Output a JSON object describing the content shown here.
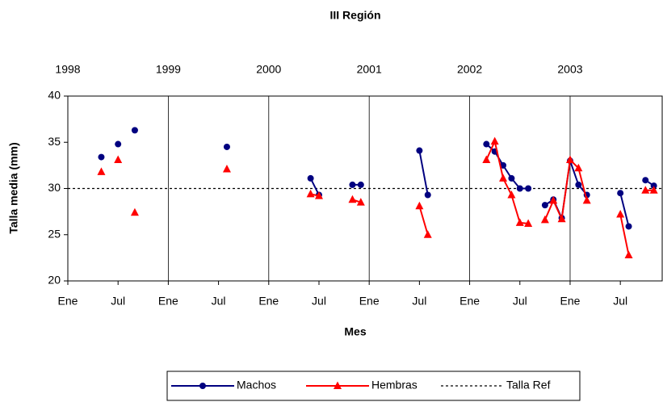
{
  "chart_data": {
    "type": "line",
    "title": "III Región",
    "x_label": "Mes",
    "y_label": "Talla media (mm)",
    "x": [
      "1998-05",
      "1998-06",
      "1998-07",
      "1998-08",
      "1998-09",
      "1998-10",
      "1999-08",
      "1999-09",
      "2000-06",
      "2000-07",
      "2000-08",
      "2000-11",
      "2000-12",
      "2001-01",
      "2001-07",
      "2001-08",
      "2001-09",
      "2002-03",
      "2002-04",
      "2002-05",
      "2002-06",
      "2002-07",
      "2002-08",
      "2002-09",
      "2002-10",
      "2002-11",
      "2002-12",
      "2003-01",
      "2003-02",
      "2003-03",
      "2003-04",
      "2003-07",
      "2003-08",
      "2003-09",
      "2003-10",
      "2003-11"
    ],
    "series": [
      {
        "name": "Machos",
        "color": "#000080",
        "marker": "circle",
        "values": [
          33.4,
          null,
          34.8,
          null,
          36.3,
          null,
          34.5,
          null,
          31.1,
          29.3,
          null,
          30.4,
          30.4,
          null,
          34.1,
          29.3,
          null,
          34.8,
          34.0,
          32.5,
          31.1,
          30.0,
          30.0,
          null,
          28.2,
          28.8,
          26.8,
          33.0,
          30.4,
          29.3,
          null,
          29.5,
          25.9,
          null,
          30.9,
          30.3
        ]
      },
      {
        "name": "Hembras",
        "color": "#ff0000",
        "marker": "triangle",
        "values": [
          31.8,
          null,
          33.1,
          null,
          27.4,
          null,
          32.1,
          null,
          29.4,
          29.2,
          null,
          28.8,
          28.5,
          null,
          28.1,
          25.0,
          null,
          33.1,
          35.1,
          31.1,
          29.3,
          26.3,
          26.2,
          null,
          26.6,
          28.7,
          26.7,
          33.1,
          32.2,
          28.7,
          null,
          27.2,
          22.8,
          null,
          29.8,
          29.8
        ]
      }
    ],
    "reference": {
      "name": "Talla Ref",
      "value": 30,
      "color": "#000000"
    },
    "xlim": [
      "1998-01",
      "2003-12"
    ],
    "xticks": [
      {
        "value": "1998-01",
        "label": "Ene"
      },
      {
        "value": "1998-07",
        "label": "Jul"
      },
      {
        "value": "1999-01",
        "label": "Ene"
      },
      {
        "value": "1999-07",
        "label": "Jul"
      },
      {
        "value": "2000-01",
        "label": "Ene"
      },
      {
        "value": "2000-07",
        "label": "Jul"
      },
      {
        "value": "2001-01",
        "label": "Ene"
      },
      {
        "value": "2001-07",
        "label": "Jul"
      },
      {
        "value": "2002-01",
        "label": "Ene"
      },
      {
        "value": "2002-07",
        "label": "Jul"
      },
      {
        "value": "2003-01",
        "label": "Ene"
      },
      {
        "value": "2003-07",
        "label": "Jul"
      }
    ],
    "x2ticks": [
      {
        "value": "1998-01",
        "label": "1998"
      },
      {
        "value": "1999-01",
        "label": "1999"
      },
      {
        "value": "2000-01",
        "label": "2000"
      },
      {
        "value": "2001-01",
        "label": "2001"
      },
      {
        "value": "2002-01",
        "label": "2002"
      },
      {
        "value": "2003-01",
        "label": "2003"
      }
    ],
    "ylim": [
      20,
      40
    ],
    "yticks": [
      20,
      25,
      30,
      35,
      40
    ],
    "grid": true
  }
}
